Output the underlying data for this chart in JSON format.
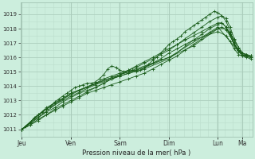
{
  "title": "Pression niveau de la mer( hPa )",
  "bg_color": "#cceedd",
  "grid_color_major": "#aaccbb",
  "grid_color_minor": "#bbddcc",
  "line_color": "#1a5c1a",
  "marker_color": "#1a5c1a",
  "ylim": [
    1010.5,
    1019.8
  ],
  "yticks": [
    1011,
    1012,
    1013,
    1014,
    1015,
    1016,
    1017,
    1018,
    1019
  ],
  "xlabels": [
    "Jeu",
    "Ven",
    "Sam",
    "Dim",
    "Lun",
    "Ma"
  ],
  "x_day_positions": [
    0,
    1,
    2,
    3,
    4,
    4.5
  ],
  "xlim": [
    -0.03,
    4.7
  ],
  "series": [
    {
      "x": [
        0.0,
        0.08,
        0.17,
        0.25,
        0.33,
        0.42,
        0.5,
        0.58,
        0.67,
        0.75,
        0.83,
        0.92,
        1.0,
        1.08,
        1.17,
        1.25,
        1.33,
        1.42,
        1.5,
        1.58,
        1.67,
        1.75,
        1.83,
        1.92,
        2.0,
        2.08,
        2.17,
        2.25,
        2.33,
        2.42,
        2.5,
        2.58,
        2.67,
        2.75,
        2.83,
        2.92,
        3.0,
        3.08,
        3.17,
        3.25,
        3.33,
        3.42,
        3.5,
        3.58,
        3.67,
        3.75,
        3.83,
        3.92,
        4.0,
        4.08,
        4.17,
        4.25,
        4.33,
        4.42,
        4.5,
        4.58,
        4.67
      ],
      "y": [
        1011.0,
        1011.2,
        1011.5,
        1011.8,
        1012.0,
        1012.2,
        1012.4,
        1012.6,
        1012.9,
        1013.1,
        1013.3,
        1013.5,
        1013.7,
        1013.9,
        1014.0,
        1014.1,
        1014.2,
        1014.2,
        1014.3,
        1014.5,
        1014.8,
        1015.2,
        1015.4,
        1015.3,
        1015.1,
        1015.0,
        1015.0,
        1015.1,
        1015.0,
        1015.1,
        1015.3,
        1015.5,
        1015.8,
        1016.0,
        1016.3,
        1016.6,
        1016.9,
        1017.1,
        1017.3,
        1017.5,
        1017.8,
        1018.0,
        1018.2,
        1018.4,
        1018.6,
        1018.8,
        1019.0,
        1019.2,
        1019.1,
        1018.9,
        1018.5,
        1017.8,
        1017.0,
        1016.5,
        1016.3,
        1016.2,
        1016.1
      ]
    },
    {
      "x": [
        0.0,
        0.17,
        0.33,
        0.5,
        0.67,
        0.83,
        1.0,
        1.17,
        1.33,
        1.5,
        1.67,
        1.83,
        2.0,
        2.17,
        2.33,
        2.5,
        2.67,
        2.83,
        3.0,
        3.17,
        3.33,
        3.5,
        3.67,
        3.83,
        4.0,
        4.08,
        4.17,
        4.25,
        4.33,
        4.42,
        4.5,
        4.58,
        4.67
      ],
      "y": [
        1011.0,
        1011.5,
        1012.0,
        1012.4,
        1012.8,
        1013.1,
        1013.4,
        1013.7,
        1013.9,
        1014.2,
        1014.5,
        1014.7,
        1014.9,
        1015.1,
        1015.3,
        1015.6,
        1015.9,
        1016.2,
        1016.5,
        1016.9,
        1017.3,
        1017.7,
        1018.1,
        1018.5,
        1018.8,
        1018.9,
        1018.7,
        1018.1,
        1017.3,
        1016.7,
        1016.3,
        1016.2,
        1016.1
      ]
    },
    {
      "x": [
        0.0,
        0.17,
        0.33,
        0.5,
        0.67,
        0.83,
        1.0,
        1.17,
        1.33,
        1.5,
        1.67,
        1.83,
        2.0,
        2.17,
        2.33,
        2.5,
        2.67,
        2.83,
        3.0,
        3.17,
        3.33,
        3.5,
        3.67,
        3.83,
        4.0,
        4.08,
        4.17,
        4.25,
        4.33,
        4.42,
        4.5,
        4.58,
        4.67
      ],
      "y": [
        1011.0,
        1011.3,
        1011.7,
        1012.0,
        1012.3,
        1012.6,
        1012.9,
        1013.2,
        1013.5,
        1013.7,
        1013.9,
        1014.1,
        1014.3,
        1014.5,
        1014.7,
        1014.9,
        1015.2,
        1015.5,
        1015.8,
        1016.1,
        1016.5,
        1016.9,
        1017.3,
        1017.7,
        1018.0,
        1018.1,
        1017.9,
        1017.5,
        1016.9,
        1016.5,
        1016.2,
        1016.1,
        1016.0
      ]
    },
    {
      "x": [
        0.0,
        0.17,
        0.33,
        0.5,
        0.67,
        0.83,
        1.0,
        1.17,
        1.33,
        1.5,
        1.67,
        1.83,
        2.0,
        2.17,
        2.33,
        2.5,
        2.67,
        2.83,
        3.0,
        3.17,
        3.33,
        3.5,
        3.67,
        3.83,
        4.0,
        4.08,
        4.17,
        4.25,
        4.33,
        4.42,
        4.5,
        4.58,
        4.67
      ],
      "y": [
        1011.0,
        1011.4,
        1011.8,
        1012.2,
        1012.5,
        1012.9,
        1013.2,
        1013.5,
        1013.7,
        1013.9,
        1014.2,
        1014.5,
        1014.7,
        1014.9,
        1015.1,
        1015.3,
        1015.6,
        1015.9,
        1016.3,
        1016.6,
        1016.9,
        1017.2,
        1017.6,
        1018.0,
        1018.3,
        1018.4,
        1018.1,
        1017.6,
        1017.0,
        1016.5,
        1016.3,
        1016.2,
        1016.1
      ]
    },
    {
      "x": [
        0.0,
        0.17,
        0.33,
        0.5,
        0.67,
        0.83,
        1.0,
        1.17,
        1.33,
        1.5,
        1.67,
        1.83,
        2.0,
        2.17,
        2.33,
        2.5,
        2.67,
        2.83,
        3.0,
        3.17,
        3.33,
        3.5,
        3.67,
        3.83,
        4.0,
        4.08,
        4.17,
        4.25,
        4.33,
        4.42,
        4.5,
        4.58,
        4.67
      ],
      "y": [
        1011.0,
        1011.3,
        1011.6,
        1012.0,
        1012.4,
        1012.7,
        1013.0,
        1013.3,
        1013.6,
        1013.9,
        1014.2,
        1014.5,
        1014.8,
        1015.1,
        1015.4,
        1015.7,
        1016.0,
        1016.3,
        1016.6,
        1016.9,
        1017.2,
        1017.5,
        1017.8,
        1018.1,
        1018.4,
        1018.4,
        1018.1,
        1017.5,
        1016.9,
        1016.4,
        1016.2,
        1016.1,
        1016.0
      ]
    },
    {
      "x": [
        0.0,
        0.5,
        1.0,
        1.5,
        2.0,
        2.5,
        3.0,
        3.5,
        4.0,
        4.17,
        4.25,
        4.33,
        4.42,
        4.5,
        4.58,
        4.67
      ],
      "y": [
        1011.0,
        1012.5,
        1013.5,
        1014.2,
        1014.8,
        1015.3,
        1016.0,
        1016.8,
        1018.0,
        1018.0,
        1017.7,
        1017.2,
        1016.7,
        1016.3,
        1016.1,
        1016.0
      ]
    },
    {
      "x": [
        0.0,
        0.5,
        1.0,
        1.5,
        2.0,
        2.5,
        3.0,
        3.5,
        4.0,
        4.17,
        4.25,
        4.33,
        4.42,
        4.5,
        4.58,
        4.67
      ],
      "y": [
        1011.0,
        1012.4,
        1013.3,
        1014.1,
        1014.7,
        1015.2,
        1015.9,
        1017.2,
        1017.8,
        1017.5,
        1017.1,
        1016.6,
        1016.2,
        1016.1,
        1016.0,
        1015.9
      ]
    },
    {
      "x": [
        0.0,
        1.0,
        2.0,
        3.0,
        4.0,
        4.5,
        4.67
      ],
      "y": [
        1011.0,
        1013.5,
        1014.8,
        1016.0,
        1018.1,
        1016.1,
        1016.0
      ]
    }
  ]
}
